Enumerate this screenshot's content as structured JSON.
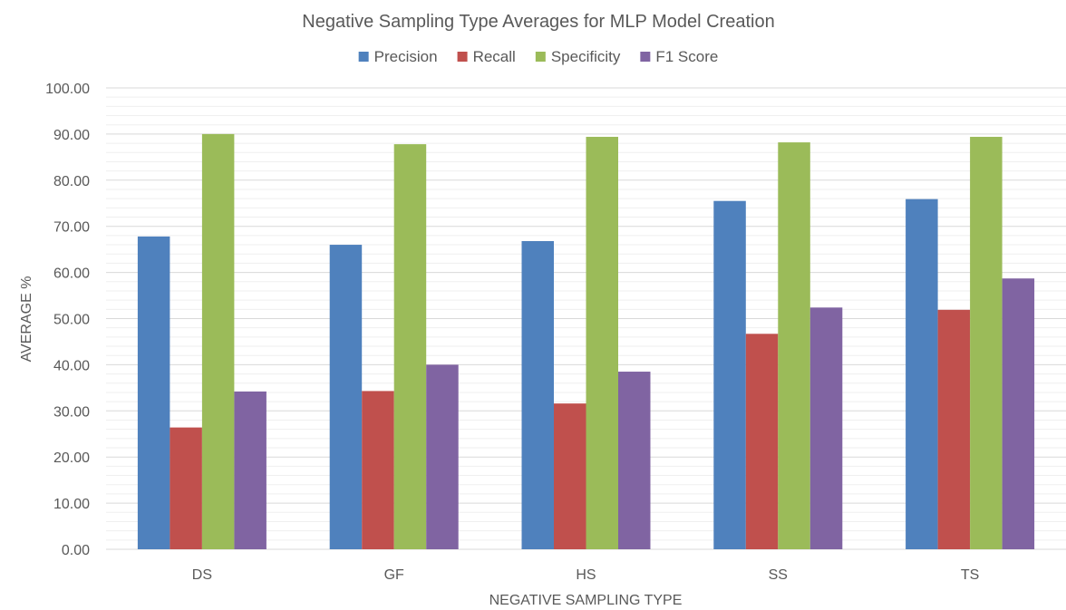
{
  "chart_data": {
    "type": "bar",
    "title": "Negative Sampling Type Averages for MLP Model Creation",
    "xlabel": "NEGATIVE SAMPLING TYPE",
    "ylabel": "AVERAGE %",
    "categories": [
      "DS",
      "GF",
      "HS",
      "SS",
      "TS"
    ],
    "ylim": [
      0,
      100
    ],
    "yticks": [
      "0.00",
      "10.00",
      "20.00",
      "30.00",
      "40.00",
      "50.00",
      "60.00",
      "70.00",
      "80.00",
      "90.00",
      "100.00"
    ],
    "grid": true,
    "legend_position": "top",
    "series": [
      {
        "name": "Precision",
        "color": "#4F81BD",
        "values": [
          67.8,
          66.0,
          66.8,
          75.5,
          75.9
        ]
      },
      {
        "name": "Recall",
        "color": "#C0504D",
        "values": [
          26.4,
          34.3,
          31.6,
          46.7,
          51.9
        ]
      },
      {
        "name": "Specificity",
        "color": "#9BBB59",
        "values": [
          90.0,
          87.8,
          89.4,
          88.2,
          89.4
        ]
      },
      {
        "name": "F1 Score",
        "color": "#8064A2",
        "values": [
          34.2,
          40.0,
          38.5,
          52.4,
          58.7
        ]
      }
    ]
  }
}
